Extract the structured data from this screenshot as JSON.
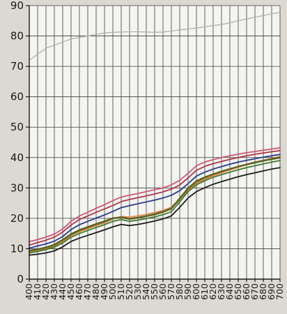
{
  "chart_data": {
    "type": "line",
    "title": "",
    "xlabel": "",
    "ylabel": "",
    "xlim": [
      400,
      700
    ],
    "ylim": [
      0,
      90
    ],
    "grid": true,
    "legend": "none",
    "x": [
      400,
      410,
      420,
      430,
      440,
      450,
      460,
      470,
      480,
      490,
      500,
      510,
      520,
      530,
      540,
      550,
      560,
      570,
      580,
      590,
      600,
      610,
      620,
      630,
      640,
      650,
      660,
      670,
      680,
      690,
      700
    ],
    "x_tick_labels": [
      "400",
      "410",
      "420",
      "430",
      "440",
      "450",
      "460",
      "470",
      "480",
      "490",
      "500",
      "510",
      "520",
      "530",
      "540",
      "550",
      "560",
      "570",
      "580",
      "590",
      "600",
      "610",
      "620",
      "630",
      "640",
      "650",
      "660",
      "670",
      "680",
      "690",
      "700"
    ],
    "y_ticks": [
      0,
      10,
      20,
      30,
      40,
      50,
      60,
      70,
      80,
      90
    ],
    "y_tick_labels": [
      "0",
      "10",
      "20",
      "30",
      "40",
      "50",
      "60",
      "70",
      "80",
      "90"
    ],
    "series": [
      {
        "color": "#b0aeb4",
        "values": [
          72,
          74,
          76,
          77,
          78,
          79,
          79.5,
          80,
          80.5,
          81,
          81.2,
          81.3,
          81.4,
          81.4,
          81.3,
          81.2,
          81.3,
          81.6,
          82,
          82.3,
          82.6,
          83,
          83.4,
          83.8,
          84.3,
          85,
          85.6,
          86.2,
          86.7,
          87.3,
          87.8
        ]
      },
      {
        "color": "#cf5873",
        "values": [
          12.3,
          13,
          13.8,
          14.8,
          16.5,
          19,
          20.8,
          22,
          23.3,
          24.5,
          25.8,
          27,
          27.6,
          28.2,
          28.8,
          29.4,
          30,
          31,
          32.5,
          34.8,
          37.3,
          38.5,
          39.3,
          40,
          40.6,
          41.1,
          41.6,
          42,
          42.4,
          42.8,
          43.2
        ]
      },
      {
        "color": "#b0354a",
        "values": [
          11.2,
          12,
          12.8,
          13.8,
          15.5,
          17.8,
          19.6,
          20.8,
          22,
          23.1,
          24.2,
          25.5,
          26.2,
          26.8,
          27.4,
          28,
          28.7,
          29.6,
          31,
          33.3,
          35.8,
          37.1,
          38,
          38.7,
          39.4,
          40,
          40.6,
          41.1,
          41.5,
          41.9,
          42.3
        ]
      },
      {
        "color": "#2b3a8c",
        "values": [
          10.2,
          10.9,
          11.6,
          12.5,
          14,
          16.3,
          17.9,
          19,
          20.1,
          21.1,
          22.3,
          23.5,
          24.2,
          24.8,
          25.4,
          26,
          26.7,
          27.6,
          29.1,
          31.4,
          33.9,
          35.2,
          36.2,
          37,
          37.8,
          38.5,
          39.1,
          39.6,
          40.1,
          40.6,
          41
        ]
      },
      {
        "color": "#e08a4a",
        "values": [
          8.8,
          9.3,
          9.9,
          10.8,
          12.4,
          14.3,
          15.6,
          16.6,
          17.6,
          18.5,
          19.8,
          20.6,
          20.4,
          20.8,
          21.3,
          21.9,
          22.6,
          23.7,
          26.4,
          29.2,
          31.4,
          32.8,
          34,
          35,
          35.9,
          36.8,
          37.6,
          38.3,
          38.9,
          39.5,
          40.1
        ]
      },
      {
        "color": "#8a6d2a",
        "values": [
          9.2,
          9.7,
          10.2,
          11.1,
          12.7,
          14.6,
          15.9,
          16.9,
          17.9,
          18.8,
          19.9,
          20.2,
          19.7,
          20.1,
          20.6,
          21.2,
          22,
          23.1,
          26.2,
          29.6,
          31.9,
          33.3,
          34.4,
          35.3,
          36.2,
          37.1,
          37.8,
          38.5,
          39.1,
          39.7,
          40.3
        ]
      },
      {
        "color": "#3f7a2e",
        "values": [
          8.6,
          9.1,
          9.7,
          10.5,
          11.9,
          13.8,
          15,
          16,
          17,
          17.9,
          19,
          19.6,
          19,
          19.4,
          19.9,
          20.5,
          21.2,
          22.2,
          25.4,
          28.8,
          31,
          32.4,
          33.5,
          34.4,
          35.2,
          36,
          36.7,
          37.3,
          37.9,
          38.5,
          39
        ]
      },
      {
        "color": "#4e5f24",
        "values": [
          9.4,
          9.9,
          10.5,
          11.4,
          13,
          14.9,
          16.2,
          17.2,
          18.2,
          19.1,
          20.1,
          20.4,
          19.9,
          20.3,
          20.8,
          21.4,
          22.2,
          23.3,
          26.6,
          30,
          32.3,
          33.6,
          34.6,
          35.5,
          36.3,
          37,
          37.7,
          38.3,
          38.9,
          39.4,
          39.9
        ]
      },
      {
        "color": "#1c1c1c",
        "values": [
          7.9,
          8.2,
          8.6,
          9.3,
          10.6,
          12.4,
          13.5,
          14.4,
          15.3,
          16.2,
          17.2,
          18,
          17.6,
          18,
          18.5,
          19.1,
          19.8,
          20.8,
          23.6,
          26.7,
          28.8,
          30.1,
          31.2,
          32.1,
          32.9,
          33.7,
          34.4,
          35,
          35.6,
          36.2,
          36.7
        ]
      }
    ]
  }
}
